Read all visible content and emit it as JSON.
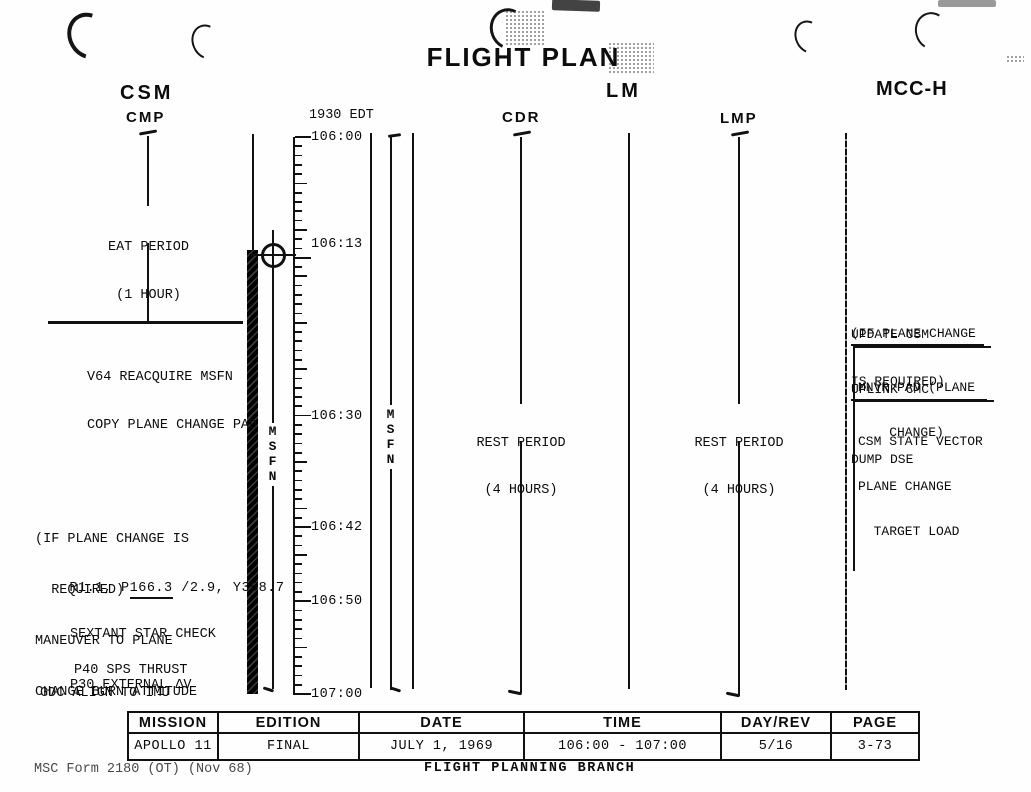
{
  "title": "FLIGHT PLAN",
  "headers": {
    "csm": "CSM",
    "cmp": "CMP",
    "lm": "LM",
    "cdr": "CDR",
    "lmp": "LMP",
    "mcch": "MCC-H"
  },
  "timeline": {
    "edt_label": "1930 EDT",
    "duration_minutes": 60,
    "msfn_label": "MSFN",
    "labels": [
      {
        "text": "106:00",
        "minute": 0
      },
      {
        "text": "106:13",
        "minute": 13
      },
      {
        "text": "106:30",
        "minute": 30
      },
      {
        "text": "106:42",
        "minute": 42
      },
      {
        "text": "106:50",
        "minute": 50
      },
      {
        "text": "107:00",
        "minute": 60
      }
    ]
  },
  "csm_column": {
    "eat_period": [
      "EAT PERIOD",
      "(1 HOUR)"
    ],
    "v64_block": [
      "V64 REACQUIRE MSFN",
      "COPY PLANE CHANGE PAD"
    ],
    "plane_change_block": [
      "(IF PLANE CHANGE IS",
      "  REQUIRED)",
      "MANEUVER TO PLANE",
      "CHANGE BURN ATTITUDE"
    ],
    "attitude_line": {
      "prefix": "R1.1, P",
      "underlined": "166.3",
      "suffix": " /2.9, Y358.7"
    },
    "sextant_block": [
      "SEXTANT STAR CHECK",
      "P30 EXTERNAL ΔV"
    ],
    "p40_line": "P40 SPS THRUST",
    "gdc_line": "GDC ALIGN TO IMU"
  },
  "lm_column": {
    "cdr_rest": [
      "REST PERIOD",
      "(4 HOURS)"
    ],
    "lmp_rest": [
      "REST PERIOD",
      "(4 HOURS)"
    ]
  },
  "mcch_column": {
    "condition": [
      "(IF PLANE CHANGE",
      "IS REQUIRED)"
    ],
    "update_csm_label": "UPDATE CSM",
    "mnvr_pad_box": [
      "MNVR PAD (PLANE",
      "    CHANGE)"
    ],
    "uplink_cmc_label": "UPLINK CMC",
    "uplink_box": [
      "CSM STATE VECTOR",
      "PLANE CHANGE",
      "  TARGET LOAD"
    ],
    "dump_dse": "DUMP DSE"
  },
  "summary_table": {
    "headers": [
      "MISSION",
      "EDITION",
      "DATE",
      "TIME",
      "DAY/REV",
      "PAGE"
    ],
    "values": [
      "APOLLO 11",
      "FINAL",
      "JULY 1, 1969",
      "106:00 - 107:00",
      "5/16",
      "3-73"
    ]
  },
  "footer": {
    "form_number": "MSC Form 2180 (OT) (Nov 68)",
    "branch": "FLIGHT PLANNING BRANCH"
  }
}
